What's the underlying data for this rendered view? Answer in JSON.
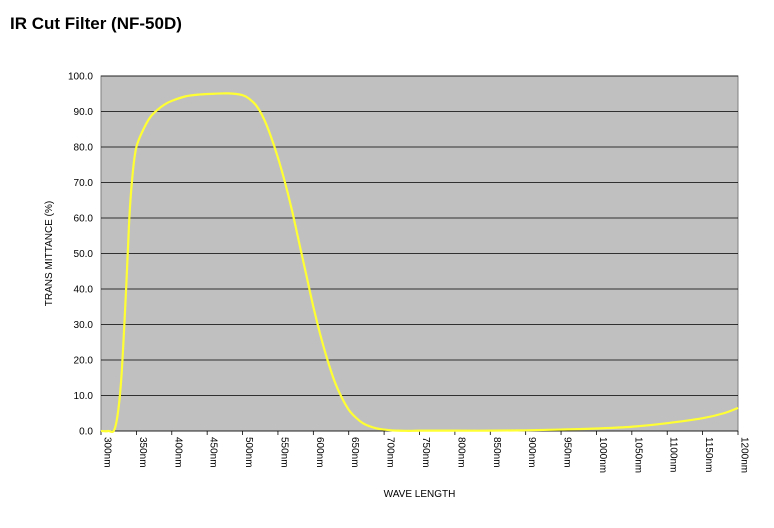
{
  "page": {
    "title": "IR Cut Filter (NF-50D)"
  },
  "chart_data": {
    "type": "line",
    "title": "IR Cut Filter (NF-50D)",
    "xlabel": "WAVE LENGTH",
    "ylabel": "TRANS MITTANCE (%)",
    "xlim": [
      300,
      1200
    ],
    "ylim": [
      0,
      100
    ],
    "x_tick_labels": [
      "300nm",
      "350nm",
      "400nm",
      "450nm",
      "500nm",
      "550nm",
      "600nm",
      "650nm",
      "700nm",
      "750nm",
      "800nm",
      "850nm",
      "900nm",
      "950nm",
      "1000nm",
      "1050nm",
      "1100nm",
      "1150nm",
      "1200nm"
    ],
    "y_tick_labels": [
      "0.0",
      "10.0",
      "20.0",
      "30.0",
      "40.0",
      "50.0",
      "60.0",
      "70.0",
      "80.0",
      "90.0",
      "100.0"
    ],
    "grid": "horizontal",
    "colors": {
      "plot_background": "#c0c0c0",
      "line": "#ffff33",
      "grid": "#000000"
    },
    "series": [
      {
        "x": [
          300,
          310,
          320,
          328,
          335,
          340,
          345,
          350,
          360,
          370,
          380,
          390,
          400,
          420,
          440,
          460,
          480,
          500,
          510,
          520,
          530,
          540,
          550,
          560,
          570,
          580,
          590,
          600,
          610,
          620,
          630,
          640,
          650,
          660,
          670,
          680,
          690,
          700,
          710,
          720,
          730,
          740,
          750,
          775,
          800,
          850,
          900,
          950,
          1000,
          1050,
          1100,
          1150,
          1180,
          1200
        ],
        "y": [
          0,
          0,
          1,
          13,
          38,
          60,
          73,
          80,
          85,
          88.5,
          90.5,
          92,
          93,
          94.3,
          94.8,
          95,
          95.1,
          94.6,
          93.5,
          91.5,
          88,
          83,
          77,
          70,
          62,
          53,
          44,
          35,
          27,
          20,
          14,
          9.5,
          6,
          3.8,
          2.2,
          1.3,
          0.7,
          0.4,
          0.2,
          0.1,
          0.05,
          0.05,
          0.1,
          0.1,
          0.1,
          0.1,
          0.2,
          0.4,
          0.7,
          1.2,
          2.2,
          3.6,
          5,
          6.5
        ]
      }
    ]
  }
}
